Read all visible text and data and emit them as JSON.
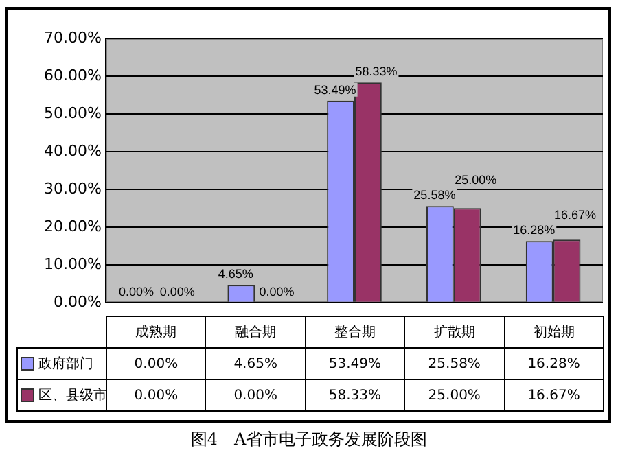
{
  "chart_data": {
    "type": "bar",
    "categories": [
      "成熟期",
      "融合期",
      "整合期",
      "扩散期",
      "初始期"
    ],
    "series": [
      {
        "name": "政府部门",
        "color": "#9999ff",
        "values": [
          0,
          4.65,
          53.49,
          25.58,
          16.28
        ],
        "value_labels": [
          "0.00%",
          "4.65%",
          "53.49%",
          "25.58%",
          "16.28%"
        ]
      },
      {
        "name": "区、县级市",
        "color": "#993366",
        "values": [
          0,
          0,
          58.33,
          25,
          16.67
        ],
        "value_labels": [
          "0.00%",
          "0.00%",
          "58.33%",
          "25.00%",
          "16.67%"
        ]
      }
    ],
    "ylim": [
      0,
      70
    ],
    "yticks": [
      {
        "value": 0,
        "label": "0.00%"
      },
      {
        "value": 10,
        "label": "10.00%"
      },
      {
        "value": 20,
        "label": "20.00%"
      },
      {
        "value": 30,
        "label": "30.00%"
      },
      {
        "value": 40,
        "label": "40.00%"
      },
      {
        "value": 50,
        "label": "50.00%"
      },
      {
        "value": 60,
        "label": "60.00%"
      },
      {
        "value": 70,
        "label": "70.00%"
      }
    ],
    "grid": "y",
    "legend": "bottom",
    "annotations": [
      "图4　A省市电子政务发展阶段图"
    ]
  }
}
